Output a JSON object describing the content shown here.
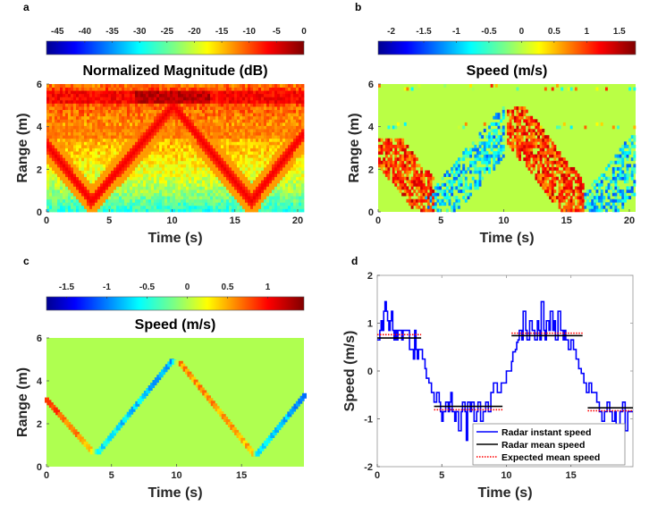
{
  "chart_data": [
    {
      "panel_label": "a",
      "type": "heatmap",
      "title": "Normalized Magnitude (dB)",
      "xlabel": "Time (s)",
      "ylabel": "Range (m)",
      "xlim": [
        0,
        20.5
      ],
      "ylim": [
        0,
        6
      ],
      "xticks": [
        "0",
        "5",
        "10",
        "15",
        "20"
      ],
      "xtick_values": [
        0,
        5,
        10,
        15,
        20
      ],
      "yticks": [
        "0",
        "2",
        "4",
        "6"
      ],
      "ytick_values": [
        0,
        2,
        4,
        6
      ],
      "colorbar": {
        "placement": "top",
        "colormap": "jet",
        "range": [
          -47,
          0
        ],
        "ticks": [
          "-45",
          "-40",
          "-35",
          "-30",
          "-25",
          "-20",
          "-15",
          "-10",
          "-5",
          "0"
        ],
        "tick_values": [
          -45,
          -40,
          -35,
          -30,
          -25,
          -20,
          -15,
          -10,
          -5,
          0
        ]
      },
      "features": {
        "target_track_range_vs_time": [
          [
            0,
            3.2
          ],
          [
            3.6,
            0.5
          ],
          [
            10.1,
            5.0
          ],
          [
            16.3,
            0.5
          ],
          [
            20.5,
            3.7
          ]
        ],
        "static_bands_m": [
          5.4,
          3.8
        ],
        "background_db_by_range": [
          [
            0,
            -28
          ],
          [
            1,
            -22
          ],
          [
            2,
            -18
          ],
          [
            3,
            -15
          ],
          [
            4,
            -13
          ],
          [
            5,
            -10
          ],
          [
            5.4,
            -4
          ],
          [
            6,
            -12
          ]
        ]
      }
    },
    {
      "panel_label": "b",
      "type": "heatmap",
      "title": "Speed (m/s)",
      "xlabel": "Time (s)",
      "ylabel": "Range (m)",
      "xlim": [
        0,
        20.5
      ],
      "ylim": [
        0,
        6
      ],
      "xticks": [
        "0",
        "5",
        "10",
        "15",
        "20"
      ],
      "xtick_values": [
        0,
        5,
        10,
        15,
        20
      ],
      "yticks": [
        "0",
        "2",
        "4",
        "6"
      ],
      "ytick_values": [
        0,
        2,
        4,
        6
      ],
      "colorbar": {
        "placement": "top",
        "colormap": "jet",
        "range": [
          -2.2,
          1.75
        ],
        "ticks": [
          "-2",
          "-1.5",
          "-1",
          "-0.5",
          "0",
          "0.5",
          "1",
          "1.5"
        ],
        "tick_values": [
          -2,
          -1.5,
          -1,
          -0.5,
          0,
          0.5,
          1,
          1.5
        ]
      },
      "features": {
        "background_speed": 0,
        "approach_regions_positive_speed": [
          [
            0,
            4.5
          ],
          [
            10.3,
            16.3
          ]
        ],
        "recede_regions_negative_speed": [
          [
            3.5,
            10
          ],
          [
            16,
            20.5
          ]
        ]
      }
    },
    {
      "panel_label": "c",
      "type": "heatmap",
      "title": "Speed (m/s)",
      "xlabel": "Time (s)",
      "ylabel": "Range (m)",
      "xlim": [
        0,
        19.8
      ],
      "ylim": [
        0,
        6
      ],
      "xticks": [
        "0",
        "5",
        "10",
        "15"
      ],
      "xtick_values": [
        0,
        5,
        10,
        15
      ],
      "yticks": [
        "0",
        "2",
        "4",
        "6"
      ],
      "ytick_values": [
        0,
        2,
        4,
        6
      ],
      "colorbar": {
        "placement": "top",
        "colormap": "jet",
        "range": [
          -1.75,
          1.45
        ],
        "ticks": [
          "-1.5",
          "-1",
          "-0.5",
          "0",
          "0.5",
          "1"
        ],
        "tick_values": [
          -1.5,
          -1,
          -0.5,
          0,
          0.5,
          1
        ]
      },
      "features": {
        "background_speed": 0,
        "track": [
          [
            0,
            3.1,
            0.9
          ],
          [
            3.5,
            0.7,
            0.4
          ],
          [
            4.0,
            0.7,
            -0.6
          ],
          [
            9.6,
            4.9,
            -0.8
          ],
          [
            10.3,
            4.8,
            0.6
          ],
          [
            15.9,
            0.6,
            0.5
          ],
          [
            16.2,
            0.6,
            -0.5
          ],
          [
            19.8,
            3.3,
            -0.9
          ]
        ]
      }
    },
    {
      "panel_label": "d",
      "type": "line",
      "title": "",
      "xlabel": "Time (s)",
      "ylabel": "Speed (m/s)",
      "xlim": [
        0,
        19.8
      ],
      "ylim": [
        -2,
        2
      ],
      "xticks": [
        "0",
        "5",
        "10",
        "15"
      ],
      "xtick_values": [
        0,
        5,
        10,
        15
      ],
      "yticks": [
        "-2",
        "-1",
        "0",
        "1",
        "2"
      ],
      "ytick_values": [
        -2,
        -1,
        0,
        1,
        2
      ],
      "legend_placement": "bottom-right",
      "series": [
        {
          "name": "Radar instant speed",
          "color": "#0000ff",
          "style": "solid",
          "step": true,
          "x": [
            0,
            0.2,
            0.3,
            0.4,
            0.5,
            0.6,
            0.7,
            0.8,
            0.9,
            1.0,
            1.1,
            1.2,
            1.3,
            1.4,
            1.5,
            1.6,
            1.8,
            1.9,
            2.0,
            2.2,
            2.5,
            2.7,
            2.8,
            2.9,
            3.0,
            3.1,
            3.2,
            3.4,
            3.5,
            3.7,
            3.8,
            4.0,
            4.2,
            4.4,
            4.6,
            4.8,
            4.9,
            5.0,
            5.1,
            5.3,
            5.5,
            5.6,
            5.7,
            5.8,
            6.0,
            6.1,
            6.3,
            6.5,
            6.6,
            6.8,
            6.9,
            7.0,
            7.2,
            7.3,
            7.5,
            7.7,
            7.8,
            8.0,
            8.2,
            8.4,
            8.6,
            8.8,
            9.0,
            9.3,
            9.6,
            10.0,
            10.2,
            10.4,
            10.5,
            10.7,
            10.8,
            10.9,
            11.0,
            11.2,
            11.3,
            11.5,
            11.6,
            11.8,
            12.0,
            12.2,
            12.4,
            12.5,
            12.6,
            12.7,
            12.9,
            13.0,
            13.1,
            13.3,
            13.4,
            13.6,
            13.7,
            13.8,
            14.0,
            14.2,
            14.4,
            14.5,
            14.6,
            14.8,
            15.0,
            15.2,
            15.4,
            15.6,
            15.8,
            16.0,
            16.2,
            16.4,
            16.6,
            16.8,
            17.0,
            17.2,
            17.4,
            17.6,
            17.8,
            18.0,
            18.2,
            18.4,
            18.5,
            18.7,
            18.8,
            19.0,
            19.2,
            19.4,
            19.6
          ],
          "y": [
            0.65,
            0.85,
            1.05,
            0.85,
            1.25,
            1.45,
            1.25,
            1.05,
            0.85,
            1.05,
            1.25,
            0.85,
            0.65,
            0.85,
            0.65,
            0.85,
            0.85,
            0.65,
            0.85,
            0.85,
            0.45,
            0.45,
            0.25,
            0.85,
            0.45,
            0.25,
            0.45,
            0.45,
            0.25,
            0.05,
            -0.15,
            -0.25,
            -0.45,
            -0.65,
            -0.45,
            -0.65,
            -0.85,
            -1.05,
            -0.85,
            -0.65,
            -0.85,
            -0.65,
            -0.45,
            -0.85,
            -1.05,
            -0.85,
            -1.25,
            -0.85,
            -0.65,
            -0.85,
            -1.45,
            -0.65,
            -0.85,
            -0.65,
            -1.05,
            -0.85,
            -0.65,
            -1.05,
            -0.85,
            -0.65,
            -0.85,
            -0.45,
            -0.25,
            -0.45,
            -0.25,
            0.0,
            0.0,
            0.2,
            0.4,
            0.45,
            0.6,
            0.65,
            0.85,
            0.65,
            1.25,
            0.85,
            0.65,
            1.05,
            0.85,
            0.65,
            1.05,
            0.85,
            0.65,
            1.45,
            0.85,
            0.65,
            1.05,
            0.85,
            1.25,
            0.85,
            1.05,
            0.65,
            1.25,
            0.85,
            0.65,
            0.85,
            0.65,
            0.45,
            0.65,
            0.45,
            0.25,
            0.05,
            -0.05,
            -0.25,
            -0.45,
            -0.25,
            -0.45,
            -0.45,
            -0.65,
            -0.85,
            -1.05,
            -0.85,
            -0.65,
            -0.85,
            -1.05,
            -0.85,
            -1.45,
            -1.65,
            -0.85,
            -0.65,
            -1.25,
            -0.85,
            -0.85
          ]
        },
        {
          "name": "Radar mean speed",
          "color": "#000000",
          "style": "solid",
          "segments": [
            {
              "x": [
                0,
                3.4
              ],
              "y": 0.69
            },
            {
              "x": [
                4.4,
                9.7
              ],
              "y": -0.74
            },
            {
              "x": [
                10.4,
                15.9
              ],
              "y": 0.74
            },
            {
              "x": [
                16.3,
                19.8
              ],
              "y": -0.77
            }
          ]
        },
        {
          "name": "Expected mean speed",
          "color": "#ff0000",
          "style": "dotted",
          "segments": [
            {
              "x": [
                0,
                3.4
              ],
              "y": 0.76
            },
            {
              "x": [
                4.4,
                9.7
              ],
              "y": -0.81
            },
            {
              "x": [
                10.4,
                15.9
              ],
              "y": 0.79
            },
            {
              "x": [
                16.3,
                19.8
              ],
              "y": -0.83
            }
          ]
        }
      ]
    }
  ]
}
